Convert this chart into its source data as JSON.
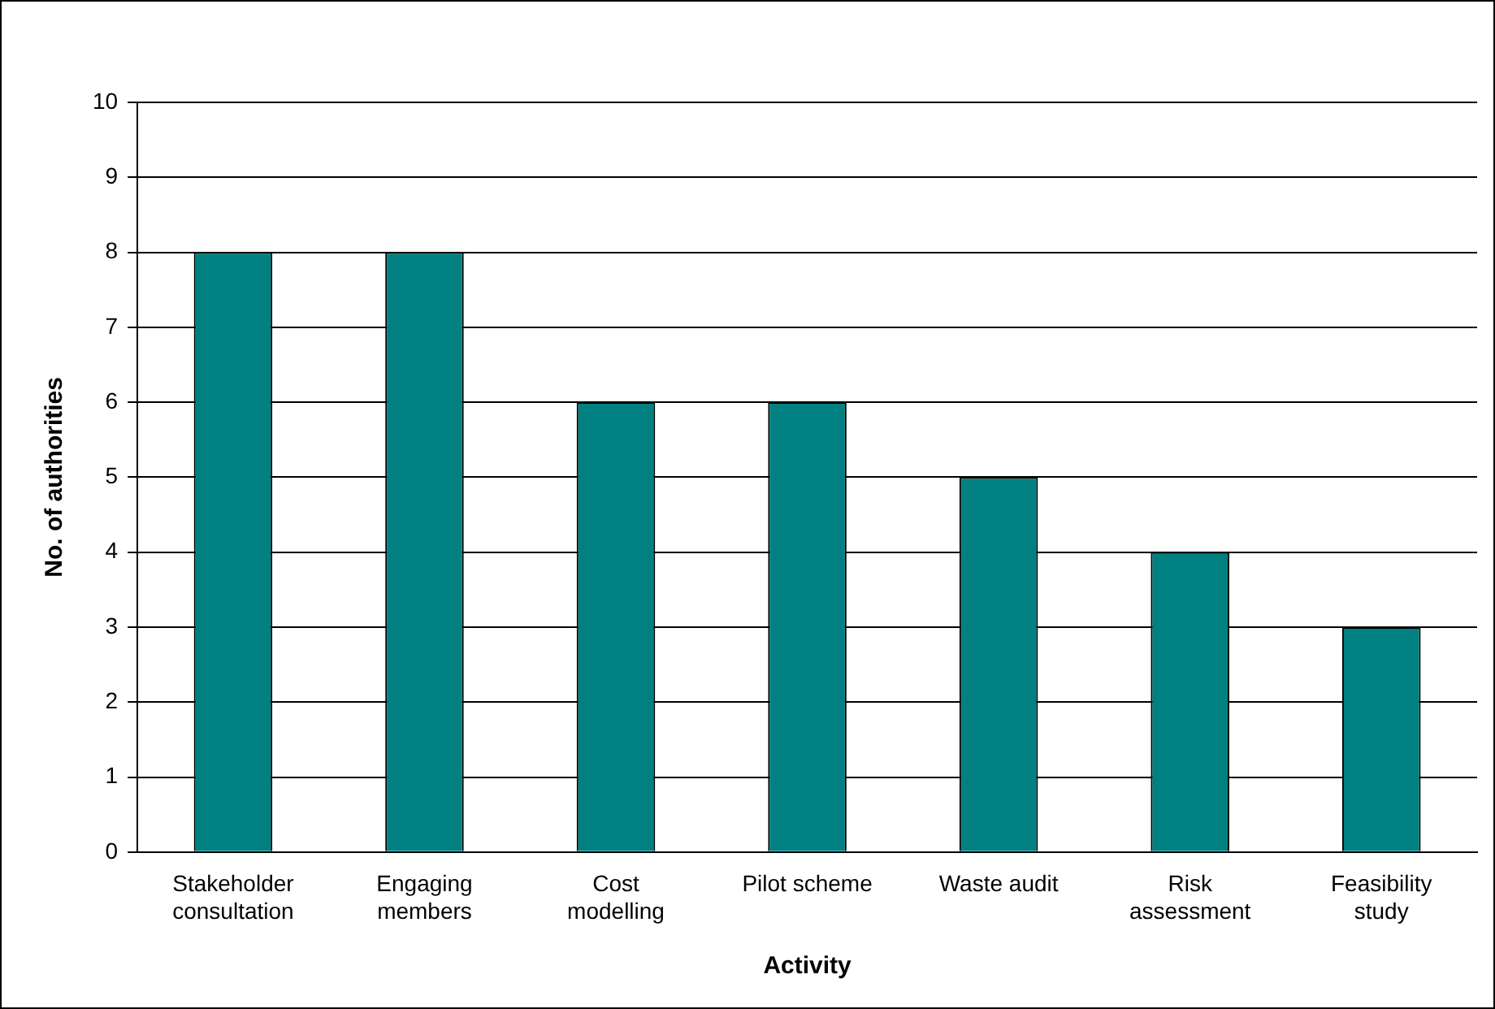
{
  "chart_data": {
    "type": "bar",
    "xlabel": "Activity",
    "ylabel": "No. of authorities",
    "categories": [
      "Stakeholder consultation",
      "Engaging members",
      "Cost modelling",
      "Pilot scheme",
      "Waste audit",
      "Risk assessment",
      "Feasibility study"
    ],
    "values": [
      8,
      8,
      6,
      6,
      5,
      4,
      3
    ],
    "color": "#008080",
    "ylim": [
      0,
      10
    ],
    "yticks": [
      0,
      1,
      2,
      3,
      4,
      5,
      6,
      7,
      8,
      9,
      10
    ],
    "grid": "y",
    "legend": false
  }
}
